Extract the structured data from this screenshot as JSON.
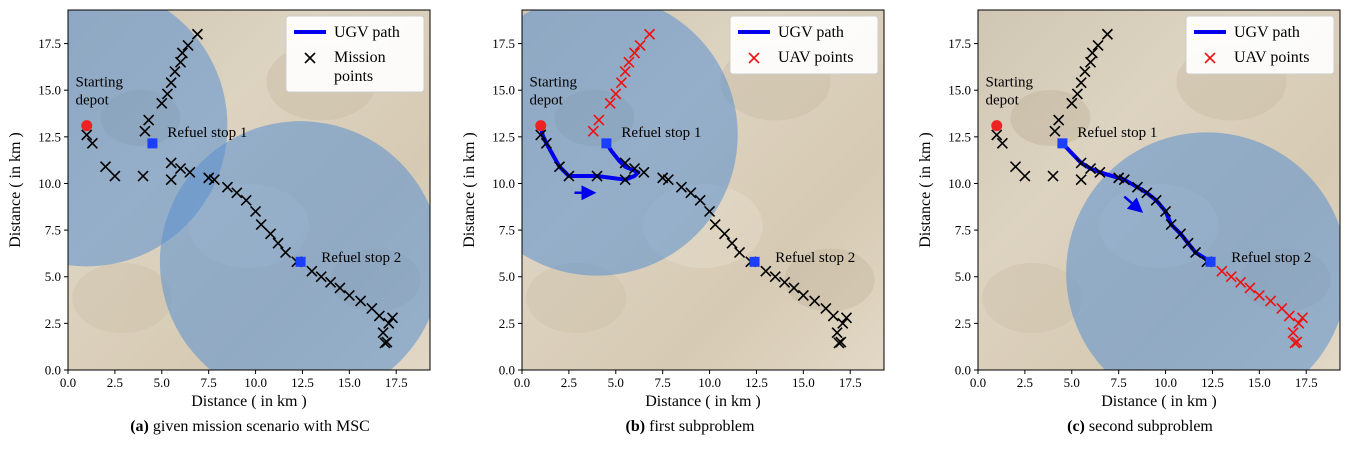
{
  "captions": [
    {
      "label": "(a)",
      "text": "given mission scenario with MSC"
    },
    {
      "label": "(b)",
      "text": "first subproblem"
    },
    {
      "label": "(c)",
      "text": "second subproblem"
    }
  ],
  "colors": {
    "ugv_path": "#0000ee",
    "mission_points": "#000000",
    "uav_points": "#ee1111",
    "depot": "#ee2222",
    "refuel_stop": "#1a3fff",
    "coverage_circle": "#5a8fd0",
    "background_terrain": "#d9cdb9"
  },
  "chart_data": [
    {
      "type": "scatter",
      "panel": "a",
      "xlabel": "Distance ( in km )",
      "ylabel": "Distance ( in km )",
      "xlim": [
        0,
        19.3
      ],
      "ylim": [
        0,
        19.3
      ],
      "xticks": [
        0.0,
        2.5,
        5.0,
        7.5,
        10.0,
        12.5,
        15.0,
        17.5
      ],
      "yticks": [
        0.0,
        2.5,
        5.0,
        7.5,
        10.0,
        12.5,
        15.0,
        17.5
      ],
      "grid": false,
      "legend_position": "top-right",
      "legend": [
        {
          "kind": "line",
          "label": "UGV path"
        },
        {
          "kind": "x",
          "label": "Mission\npoints"
        }
      ],
      "annotations": [
        {
          "text": "Starting\ndepot",
          "x": 0.4,
          "y": 15.2
        },
        {
          "text": "Refuel stop 1",
          "x": 5.3,
          "y": 12.5
        },
        {
          "text": "Refuel stop 2",
          "x": 13.5,
          "y": 5.8
        }
      ],
      "depot": {
        "x": 1.0,
        "y": 13.1
      },
      "refuel_stops": [
        {
          "x": 4.5,
          "y": 12.15
        },
        {
          "x": 12.4,
          "y": 5.8
        }
      ],
      "circles": [
        {
          "cx": 1.0,
          "cy": 13.1,
          "r": 7.5
        },
        {
          "cx": 12.4,
          "cy": 5.8,
          "r": 7.5
        }
      ],
      "ugv_path": [],
      "mission_points": [
        [
          1.0,
          12.6
        ],
        [
          1.3,
          12.15
        ],
        [
          2.0,
          10.9
        ],
        [
          2.5,
          10.4
        ],
        [
          4.0,
          10.4
        ],
        [
          5.5,
          10.2
        ],
        [
          4.1,
          12.8
        ],
        [
          4.3,
          13.4
        ],
        [
          5.0,
          14.3
        ],
        [
          5.3,
          14.8
        ],
        [
          5.5,
          15.4
        ],
        [
          5.7,
          16.0
        ],
        [
          6.0,
          16.5
        ],
        [
          6.1,
          17.0
        ],
        [
          6.4,
          17.4
        ],
        [
          6.9,
          18.0
        ],
        [
          5.5,
          11.1
        ],
        [
          6.0,
          10.8
        ],
        [
          6.5,
          10.6
        ],
        [
          7.5,
          10.3
        ],
        [
          7.8,
          10.2
        ],
        [
          8.5,
          9.8
        ],
        [
          9.0,
          9.5
        ],
        [
          9.5,
          9.1
        ],
        [
          10.0,
          8.5
        ],
        [
          10.3,
          7.8
        ],
        [
          10.8,
          7.3
        ],
        [
          11.2,
          6.8
        ],
        [
          11.6,
          6.3
        ],
        [
          12.2,
          5.8
        ],
        [
          13.0,
          5.3
        ],
        [
          13.5,
          5.0
        ],
        [
          14.0,
          4.7
        ],
        [
          14.5,
          4.4
        ],
        [
          15.0,
          4.0
        ],
        [
          15.6,
          3.7
        ],
        [
          16.2,
          3.3
        ],
        [
          16.6,
          2.9
        ],
        [
          17.1,
          2.5
        ],
        [
          17.3,
          2.8
        ],
        [
          16.8,
          2.0
        ],
        [
          17.0,
          1.5
        ],
        [
          16.9,
          1.45
        ]
      ],
      "uav_points": []
    },
    {
      "type": "scatter",
      "panel": "b",
      "xlabel": "Distance ( in km )",
      "ylabel": "Distance ( in km )",
      "xlim": [
        0,
        19.3
      ],
      "ylim": [
        0,
        19.3
      ],
      "xticks": [
        0.0,
        2.5,
        5.0,
        7.5,
        10.0,
        12.5,
        15.0,
        17.5
      ],
      "yticks": [
        0.0,
        2.5,
        5.0,
        7.5,
        10.0,
        12.5,
        15.0,
        17.5
      ],
      "grid": false,
      "legend_position": "top-right",
      "legend": [
        {
          "kind": "line",
          "label": "UGV path"
        },
        {
          "kind": "xred",
          "label": "UAV points"
        }
      ],
      "annotations": [
        {
          "text": "Starting\ndepot",
          "x": 0.4,
          "y": 15.2
        },
        {
          "text": "Refuel stop 1",
          "x": 5.3,
          "y": 12.5
        },
        {
          "text": "Refuel stop 2",
          "x": 13.5,
          "y": 5.8
        }
      ],
      "depot": {
        "x": 1.0,
        "y": 13.1
      },
      "refuel_stops": [
        {
          "x": 4.5,
          "y": 12.15
        },
        {
          "x": 12.4,
          "y": 5.8
        }
      ],
      "circles": [
        {
          "cx": 4.0,
          "cy": 12.6,
          "r": 7.5
        }
      ],
      "ugv_path": [
        [
          1.0,
          13.1
        ],
        [
          1.1,
          12.6
        ],
        [
          1.3,
          12.15
        ],
        [
          2.0,
          10.9
        ],
        [
          2.5,
          10.4
        ],
        [
          4.0,
          10.4
        ],
        [
          5.5,
          10.2
        ],
        [
          6.0,
          10.4
        ],
        [
          6.2,
          10.6
        ],
        [
          5.5,
          10.9
        ],
        [
          5.2,
          11.2
        ],
        [
          4.8,
          11.7
        ],
        [
          4.5,
          12.15
        ]
      ],
      "arrow": {
        "x1": 2.8,
        "y1": 9.5,
        "x2": 3.7,
        "y2": 9.5
      },
      "mission_points": [
        [
          1.0,
          12.6
        ],
        [
          1.3,
          12.15
        ],
        [
          2.0,
          10.9
        ],
        [
          2.5,
          10.4
        ],
        [
          4.0,
          10.4
        ],
        [
          5.5,
          10.2
        ],
        [
          5.5,
          11.1
        ],
        [
          6.0,
          10.8
        ],
        [
          6.5,
          10.6
        ],
        [
          7.5,
          10.3
        ],
        [
          7.8,
          10.2
        ],
        [
          8.5,
          9.8
        ],
        [
          9.0,
          9.5
        ],
        [
          9.5,
          9.1
        ],
        [
          10.0,
          8.5
        ],
        [
          10.3,
          7.8
        ],
        [
          10.8,
          7.3
        ],
        [
          11.2,
          6.8
        ],
        [
          11.6,
          6.3
        ],
        [
          12.2,
          5.8
        ],
        [
          13.0,
          5.3
        ],
        [
          13.5,
          5.0
        ],
        [
          14.0,
          4.7
        ],
        [
          14.5,
          4.4
        ],
        [
          15.0,
          4.0
        ],
        [
          15.6,
          3.7
        ],
        [
          16.2,
          3.3
        ],
        [
          16.6,
          2.9
        ],
        [
          17.1,
          2.5
        ],
        [
          17.3,
          2.8
        ],
        [
          16.8,
          2.0
        ],
        [
          17.0,
          1.5
        ],
        [
          16.9,
          1.45
        ]
      ],
      "uav_points": [
        [
          3.8,
          12.8
        ],
        [
          4.1,
          13.4
        ],
        [
          4.7,
          14.3
        ],
        [
          5.0,
          14.8
        ],
        [
          5.3,
          15.4
        ],
        [
          5.5,
          16.0
        ],
        [
          5.7,
          16.5
        ],
        [
          6.0,
          17.0
        ],
        [
          6.3,
          17.4
        ],
        [
          6.8,
          18.0
        ]
      ]
    },
    {
      "type": "scatter",
      "panel": "c",
      "xlabel": "Distance ( in km )",
      "ylabel": "Distance ( in km )",
      "xlim": [
        0,
        19.3
      ],
      "ylim": [
        0,
        19.3
      ],
      "xticks": [
        0.0,
        2.5,
        5.0,
        7.5,
        10.0,
        12.5,
        15.0,
        17.5
      ],
      "yticks": [
        0.0,
        2.5,
        5.0,
        7.5,
        10.0,
        12.5,
        15.0,
        17.5
      ],
      "grid": false,
      "legend_position": "top-right",
      "legend": [
        {
          "kind": "line",
          "label": "UGV path"
        },
        {
          "kind": "xred",
          "label": "UAV points"
        }
      ],
      "annotations": [
        {
          "text": "Starting\ndepot",
          "x": 0.4,
          "y": 15.2
        },
        {
          "text": "Refuel stop 1",
          "x": 5.3,
          "y": 12.5
        },
        {
          "text": "Refuel stop 2",
          "x": 13.5,
          "y": 5.8
        }
      ],
      "depot": {
        "x": 1.0,
        "y": 13.1
      },
      "refuel_stops": [
        {
          "x": 4.5,
          "y": 12.15
        },
        {
          "x": 12.4,
          "y": 5.8
        }
      ],
      "circles": [
        {
          "cx": 12.2,
          "cy": 5.2,
          "r": 7.5
        }
      ],
      "ugv_path": [
        [
          4.5,
          12.15
        ],
        [
          5.5,
          11.1
        ],
        [
          6.0,
          10.8
        ],
        [
          6.5,
          10.6
        ],
        [
          7.5,
          10.3
        ],
        [
          7.8,
          10.2
        ],
        [
          8.5,
          9.8
        ],
        [
          9.0,
          9.5
        ],
        [
          9.5,
          9.1
        ],
        [
          10.0,
          8.5
        ],
        [
          10.3,
          7.8
        ],
        [
          10.8,
          7.3
        ],
        [
          11.2,
          6.8
        ],
        [
          11.6,
          6.3
        ],
        [
          12.4,
          5.8
        ]
      ],
      "arrow": {
        "x1": 7.8,
        "y1": 9.3,
        "x2": 8.6,
        "y2": 8.6
      },
      "mission_points": [
        [
          1.0,
          12.6
        ],
        [
          1.3,
          12.15
        ],
        [
          2.0,
          10.9
        ],
        [
          2.5,
          10.4
        ],
        [
          4.0,
          10.4
        ],
        [
          5.5,
          10.2
        ],
        [
          4.1,
          12.8
        ],
        [
          4.3,
          13.4
        ],
        [
          5.0,
          14.3
        ],
        [
          5.3,
          14.8
        ],
        [
          5.5,
          15.4
        ],
        [
          5.7,
          16.0
        ],
        [
          6.0,
          16.5
        ],
        [
          6.1,
          17.0
        ],
        [
          6.4,
          17.4
        ],
        [
          6.9,
          18.0
        ],
        [
          5.5,
          11.1
        ],
        [
          6.0,
          10.8
        ],
        [
          6.5,
          10.6
        ],
        [
          7.5,
          10.3
        ],
        [
          7.8,
          10.2
        ],
        [
          8.5,
          9.8
        ],
        [
          9.0,
          9.5
        ],
        [
          9.5,
          9.1
        ],
        [
          10.0,
          8.5
        ],
        [
          10.3,
          7.8
        ],
        [
          10.8,
          7.3
        ],
        [
          11.2,
          6.8
        ],
        [
          11.6,
          6.3
        ],
        [
          12.2,
          5.8
        ]
      ],
      "uav_points": [
        [
          13.0,
          5.3
        ],
        [
          13.5,
          5.0
        ],
        [
          14.0,
          4.7
        ],
        [
          14.5,
          4.4
        ],
        [
          15.0,
          4.0
        ],
        [
          15.6,
          3.7
        ],
        [
          16.2,
          3.3
        ],
        [
          16.6,
          2.9
        ],
        [
          17.1,
          2.5
        ],
        [
          17.3,
          2.8
        ],
        [
          16.8,
          2.0
        ],
        [
          17.0,
          1.5
        ],
        [
          16.9,
          1.45
        ]
      ]
    }
  ]
}
